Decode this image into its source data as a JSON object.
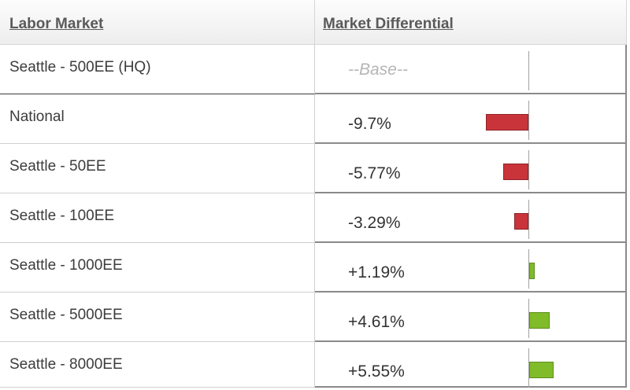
{
  "table": {
    "columns": {
      "labor_market": "Labor Market",
      "market_differential": "Market Differential"
    },
    "rows": [
      {
        "market": "Seattle - 500EE (HQ)",
        "differential": "--Base--",
        "value": 0,
        "is_base": true
      },
      {
        "market": "National",
        "differential": "-9.7%",
        "value": -9.7,
        "is_base": false
      },
      {
        "market": "Seattle - 50EE",
        "differential": "-5.77%",
        "value": -5.77,
        "is_base": false
      },
      {
        "market": "Seattle - 100EE",
        "differential": "-3.29%",
        "value": -3.29,
        "is_base": false
      },
      {
        "market": "Seattle - 1000EE",
        "differential": "+1.19%",
        "value": 1.19,
        "is_base": false
      },
      {
        "market": "Seattle - 5000EE",
        "differential": "+4.61%",
        "value": 4.61,
        "is_base": false
      },
      {
        "market": "Seattle - 8000EE",
        "differential": "+5.55%",
        "value": 5.55,
        "is_base": false
      }
    ]
  },
  "colors": {
    "negative_bar": "#c9343a",
    "positive_bar": "#80bb2a"
  }
}
